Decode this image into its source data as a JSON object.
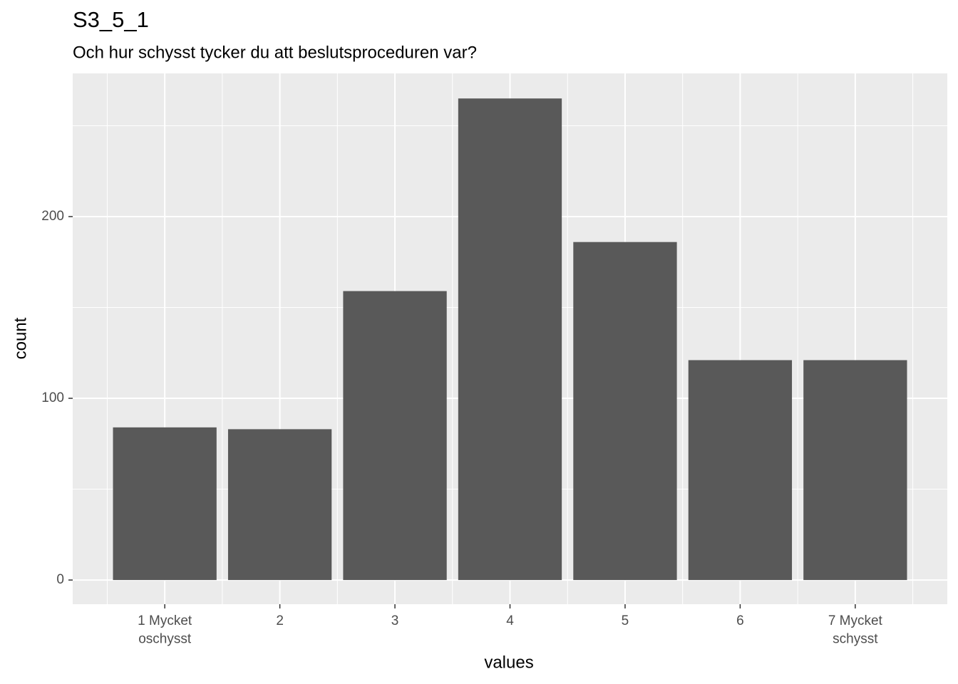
{
  "chart_data": {
    "type": "bar",
    "title": "S3_5_1",
    "subtitle": "Och hur schysst tycker du att beslutsproceduren var?",
    "x_label": "values",
    "y_label": "count",
    "categories": [
      "1 Mycket\noschysst",
      "2",
      "3",
      "4",
      "5",
      "6",
      "7 Mycket\nschysst"
    ],
    "values": [
      84,
      83,
      159,
      265,
      186,
      121,
      121
    ],
    "color": "#595959",
    "ylim": [
      -13.3,
      278.8
    ],
    "yticks": [
      0,
      100,
      200
    ],
    "y_minor_ticks": [
      50,
      150,
      250
    ],
    "grid": true
  }
}
